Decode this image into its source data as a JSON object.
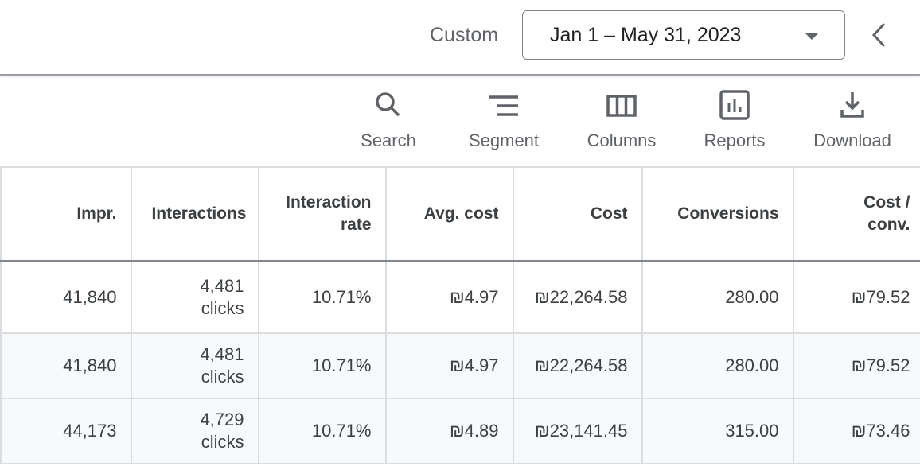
{
  "header": {
    "range_label": "Custom",
    "date_range": "Jan 1 – May 31, 2023"
  },
  "toolbar": [
    {
      "label": "Search",
      "icon": "search-icon"
    },
    {
      "label": "Segment",
      "icon": "segment-icon"
    },
    {
      "label": "Columns",
      "icon": "columns-icon"
    },
    {
      "label": "Reports",
      "icon": "reports-icon"
    },
    {
      "label": "Download",
      "icon": "download-icon"
    }
  ],
  "table": {
    "headers": [
      "Impr.",
      "Interactions",
      "Interaction rate",
      "Avg. cost",
      "Cost",
      "Conversions",
      "Cost / conv."
    ],
    "rows": [
      {
        "impr": "41,840",
        "interactions": "4,481",
        "unit": "clicks",
        "rate": "10.71%",
        "avg_cost": "₪4.97",
        "cost": "₪22,264.58",
        "conversions": "280.00",
        "cost_conv": "₪79.52"
      },
      {
        "impr": "41,840",
        "interactions": "4,481",
        "unit": "clicks",
        "rate": "10.71%",
        "avg_cost": "₪4.97",
        "cost": "₪22,264.58",
        "conversions": "280.00",
        "cost_conv": "₪79.52"
      },
      {
        "impr": "44,173",
        "interactions": "4,729",
        "unit": "clicks",
        "rate": "10.71%",
        "avg_cost": "₪4.89",
        "cost": "₪23,141.45",
        "conversions": "315.00",
        "cost_conv": "₪73.46"
      }
    ]
  }
}
